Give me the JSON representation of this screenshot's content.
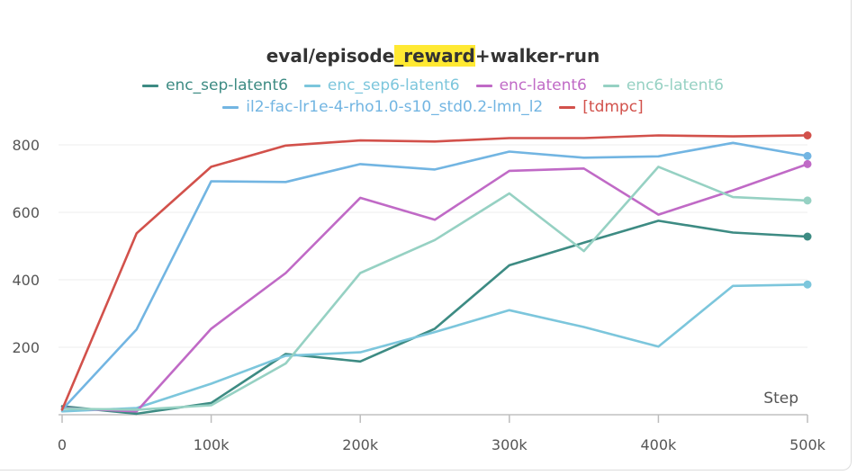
{
  "chart_data": {
    "type": "line",
    "title_prefix": "eval/episode",
    "title_highlight": "_reward",
    "title_suffix": "+walker-run",
    "xlabel": "Step",
    "ylabel": "",
    "xlim": [
      0,
      500000
    ],
    "ylim": [
      0,
      850
    ],
    "x_ticks": [
      0,
      100000,
      200000,
      300000,
      400000,
      500000
    ],
    "x_tick_labels": [
      "0",
      "100k",
      "200k",
      "300k",
      "400k",
      "500k"
    ],
    "y_ticks": [
      200,
      400,
      600,
      800
    ],
    "y_tick_labels": [
      "200",
      "400",
      "600",
      "800"
    ],
    "grid": true,
    "legend_placement": "top-center",
    "x": [
      0,
      50000,
      100000,
      150000,
      200000,
      250000,
      300000,
      350000,
      400000,
      450000,
      500000
    ],
    "series": [
      {
        "name": "enc_sep-latent6",
        "color": "#3d8b83",
        "values": [
          25,
          3,
          35,
          180,
          158,
          255,
          443,
          510,
          575,
          540,
          528
        ]
      },
      {
        "name": "enc_sep6-latent6",
        "color": "#7cc6dc",
        "values": [
          10,
          20,
          92,
          175,
          185,
          245,
          310,
          260,
          202,
          382,
          386
        ]
      },
      {
        "name": "enc-latent6",
        "color": "#c06ac6",
        "values": [
          20,
          10,
          255,
          420,
          643,
          578,
          723,
          730,
          593,
          665,
          743
        ]
      },
      {
        "name": "enc6-latent6",
        "color": "#96d1c3",
        "values": [
          18,
          15,
          28,
          152,
          420,
          518,
          656,
          485,
          735,
          645,
          635
        ]
      },
      {
        "name": "il2-fac-lr1e-4-rho1.0-s10_std0.2-lmn_l2",
        "color": "#72b5e2",
        "values": [
          15,
          253,
          692,
          690,
          743,
          727,
          780,
          762,
          766,
          806,
          767
        ]
      },
      {
        "name": "[tdmpc]",
        "color": "#d2514b",
        "values": [
          15,
          538,
          735,
          798,
          813,
          810,
          820,
          820,
          828,
          825,
          828
        ]
      }
    ]
  }
}
